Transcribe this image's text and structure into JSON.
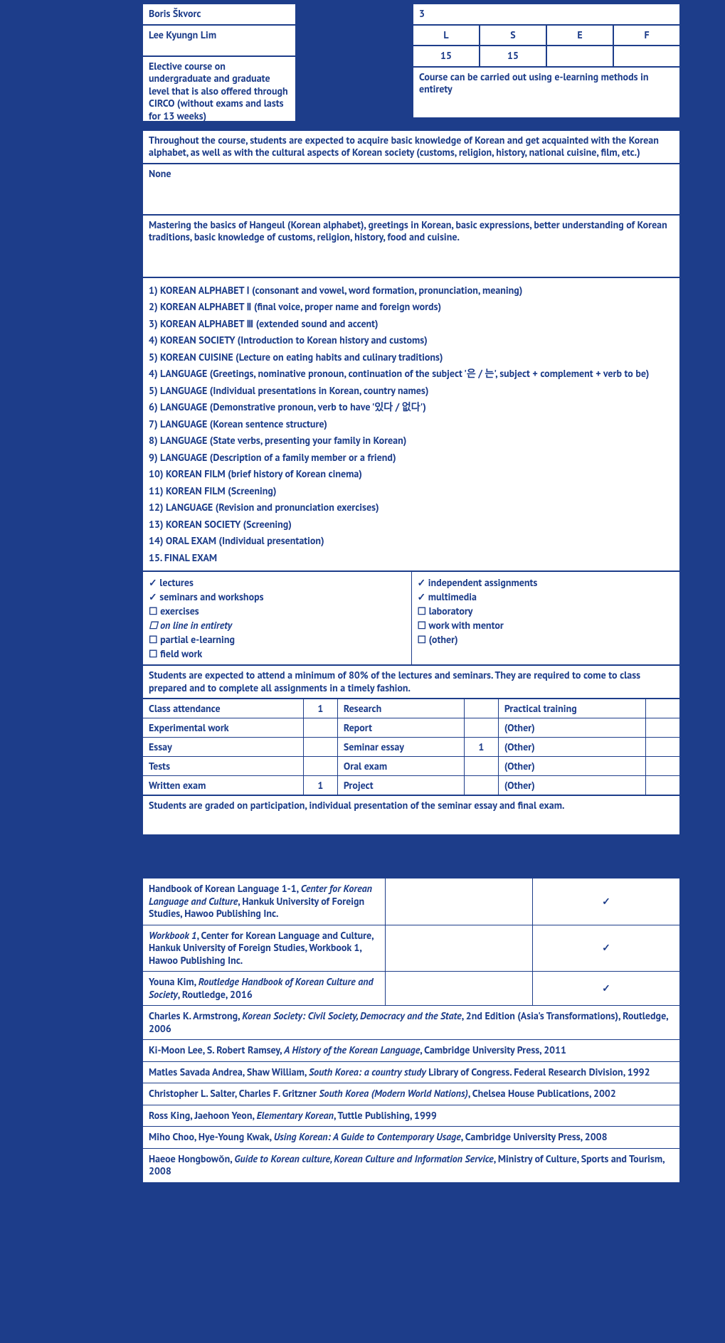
{
  "colors": {
    "page_bg": "#1d3d8a",
    "cell_bg": "#ffffff",
    "border": "#1d3d8a",
    "text": "#1d3d8a"
  },
  "header": {
    "teacher1": "Boris Škvorc",
    "teacher2": "Lee Kyungn Lim",
    "course_desc": "Elective course on undergraduate and graduate level that is also offered through CIRCO (without exams and lasts for 13 weeks)",
    "ects": "3",
    "workload_head": [
      "L",
      "S",
      "E",
      "F"
    ],
    "workload_vals": [
      "15",
      "15",
      "",
      ""
    ],
    "elearning": "Course can be carried out using e-learning methods in entirety"
  },
  "sections": {
    "objectives": "Throughout the course, students are expected to  acquire basic knowledge of Korean and get acquainted with the Korean alphabet, as well as with the cultural aspects of Korean society (customs, religion, history, national cuisine, film, etc.)",
    "prereq": "None",
    "outcomes": "Mastering the basics of Hangeul (Korean alphabet), greetings in Korean, basic expressions, better understanding of Korean traditions, basic knowledge of customs, religion, history, food and cuisine.",
    "content": [
      "1) KOREAN ALPHABET  Ⅰ (consonant and vowel, word formation, pronunciation, meaning)",
      "2) KOREAN ALPHABET Ⅱ (final voice, proper name and foreign words)",
      "3) KOREAN ALPHABET Ⅲ (extended sound and accent)",
      "4) KOREAN SOCIETY (Introduction to Korean history and customs)",
      "5) KOREAN CUISINE (Lecture on eating habits and culinary traditions)",
      "4) LANGUAGE (Greetings, nominative pronoun, continuation of the subject '은 / 는', subject + complement + verb to be)",
      "5) LANGUAGE (Individual presentations in Korean, country names)",
      "6) LANGUAGE (Demonstrative pronoun, verb to have '있다 / 없다')",
      "7) LANGUAGE (Korean sentence structure)",
      "8) LANGUAGE (State verbs, presenting your family in Korean)",
      "9) LANGUAGE (Description of a family member or a friend)",
      "10) KOREAN FILM (brief history of Korean cinema)",
      "11) KOREAN FILM (Screening)",
      "12) LANGUAGE (Revision and pronunciation exercises)",
      "13) KOREAN SOCIETY (Screening)",
      "14) ORAL EXAM (Individual presentation)",
      "15. FINAL EXAM"
    ],
    "teaching_left": [
      {
        "style": "check bold",
        "text": "lectures"
      },
      {
        "style": "check bold",
        "text": "seminars and workshops"
      },
      {
        "style": "box",
        "text": "exercises"
      },
      {
        "style": "box italic",
        "text": "on line"
      },
      {
        "style": "",
        "text": " in entirety"
      },
      {
        "style": "box",
        "text": "partial e-learning"
      },
      {
        "style": "box",
        "text": "field work"
      }
    ],
    "teaching_right": [
      {
        "style": "check bold",
        "text": "independent assignments"
      },
      {
        "style": "check bold",
        "text": "multimedia"
      },
      {
        "style": "box",
        "text": "laboratory"
      },
      {
        "style": "box",
        "text": "work with mentor"
      },
      {
        "style": "box",
        "text": "(other)"
      }
    ],
    "obligations": "Students are expected to attend a minimum of 80% of the lectures and seminars. They are required to come to class prepared and to complete all assignments in a timely fashion.",
    "assessment": [
      [
        "Class attendance",
        "1",
        "Research",
        "",
        "Practical training",
        ""
      ],
      [
        "Experimental work",
        "",
        "Report",
        "",
        "(Other)",
        ""
      ],
      [
        "Essay",
        "",
        "Seminar essay",
        "1",
        "(Other)",
        ""
      ],
      [
        "Tests",
        "",
        "Oral exam",
        "",
        "(Other)",
        ""
      ],
      [
        "Written exam",
        "1",
        "Project",
        "",
        "(Other)",
        ""
      ]
    ],
    "grading": "Students are graded on participation, individual presentation of the seminar essay and final exam.",
    "reading": [
      {
        "html": "Handbook of Korean Language 1-1, <span class='italic'>Center for Korean Language and Culture</span>, Hankuk University of Foreign Studies, Hawoo Publishing Inc.",
        "copies": "",
        "online": "✓"
      },
      {
        "html": "<span class='italic'>Workbook 1</span>, Center for Korean Language and Culture, Hankuk University of Foreign Studies, Workbook 1, Hawoo Publishing Inc.",
        "copies": "",
        "online": "✓"
      },
      {
        "html": "Youna Kim, <span class='italic'>Routledge Handbook of Korean Culture and Society</span>, Routledge, 2016",
        "copies": "",
        "online": "✓"
      },
      {
        "html": "Charles K. Armstrong, <span class='italic'>Korean Society: Civil Society, Democracy and the State</span>, 2nd Edition (Asia's Transformations), Routledge, 2006",
        "span": true
      },
      {
        "html": "Ki-Moon Lee, S. Robert Ramsey, <span class='italic'>A History of the Korean Language</span>, Cambridge University Press, 2011",
        "span": true
      },
      {
        "html": "Matles Savada Andrea, Shaw William, <span class='italic'>South Korea: a country study</span> Library of Congress. Federal Research Division, 1992",
        "span": true
      },
      {
        "html": "Christopher L. Salter, Charles F. Gritzner <span class='italic'>South Korea (Modern World Nations)</span>, Chelsea House Publications, 2002",
        "span": true
      },
      {
        "html": "Ross King, Jaehoon Yeon, <span class='italic'>Elementary Korean</span>, Tuttle Publishing, 1999",
        "span": true
      },
      {
        "html": "Miho Choo, Hye-Young Kwak, <span class='italic'>Using Korean: A Guide to Contemporary Usage</span>, Cambridge University Press, 2008",
        "span": true
      },
      {
        "html": "Haeoe Hongbowŏn, <span class='italic'>Guide to Korean culture, Korean Culture and Information Service</span>, Ministry of Culture, Sports and Tourism, 2008",
        "span": true
      }
    ]
  }
}
